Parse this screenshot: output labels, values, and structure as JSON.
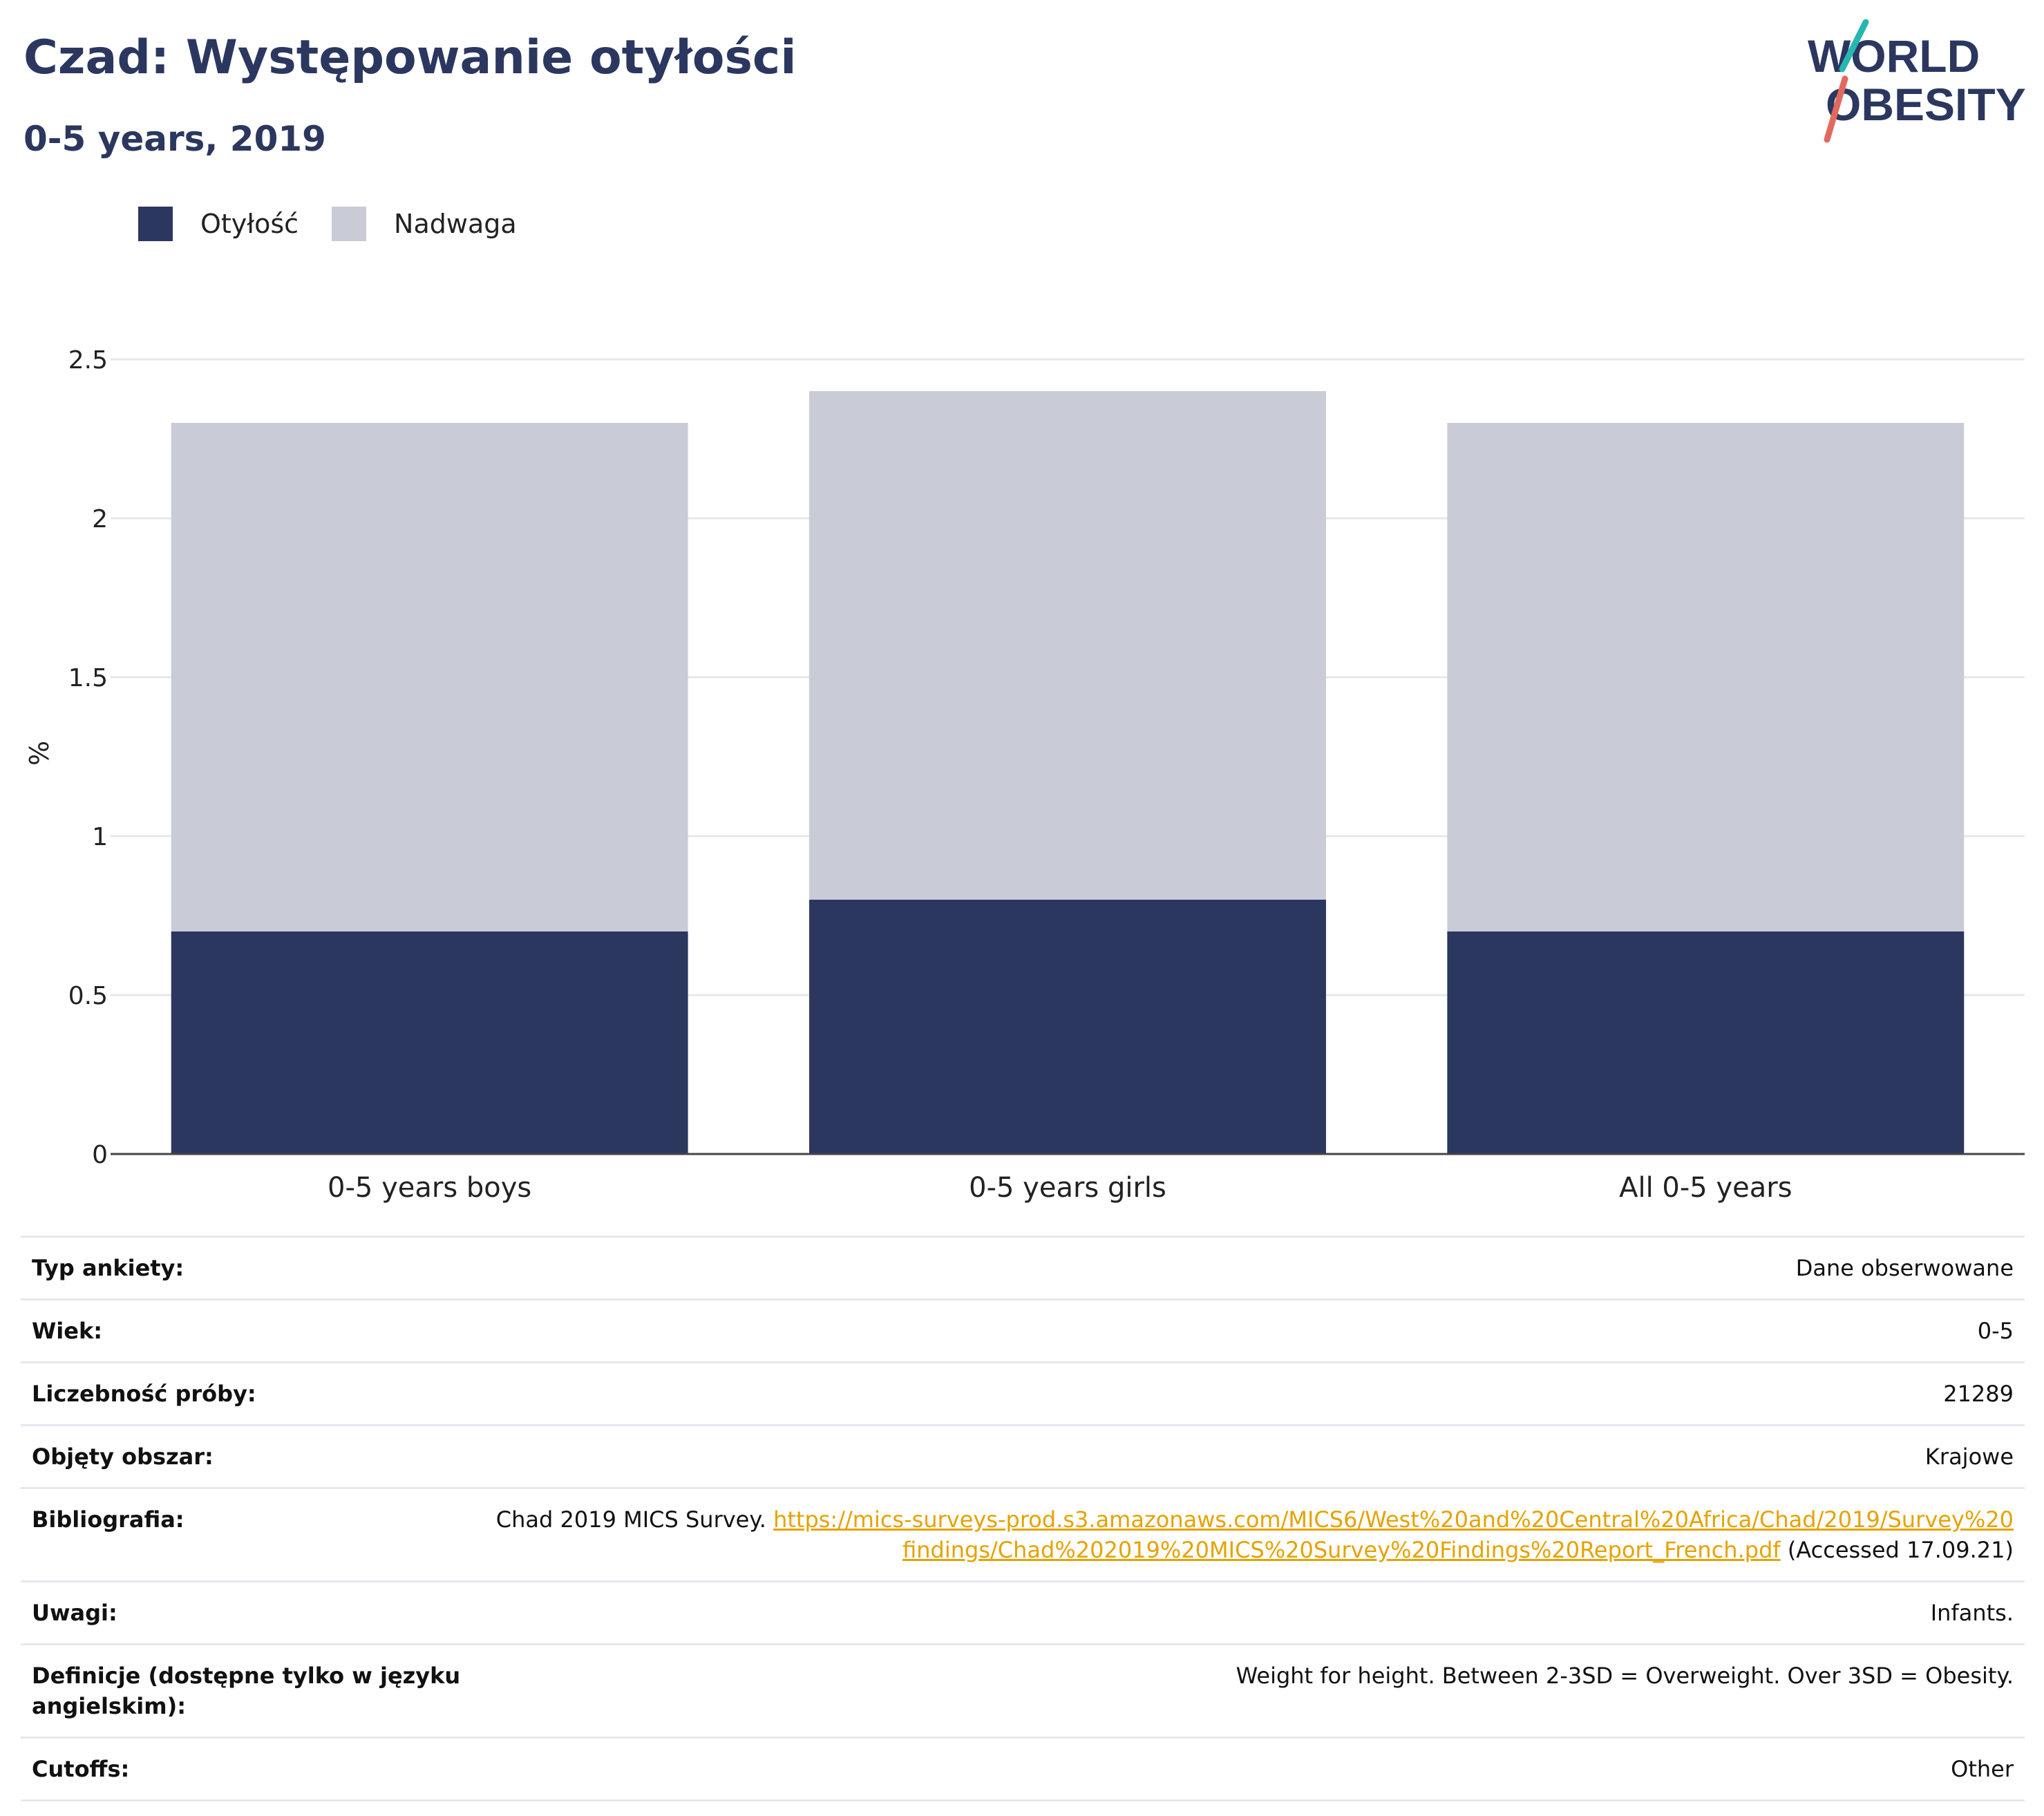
{
  "header": {
    "title": "Czad: Występowanie otyłości",
    "subtitle": "0-5 years, 2019"
  },
  "logo": {
    "line1": "WORLD",
    "line2": "OBESITY"
  },
  "legend": {
    "items": [
      {
        "label": "Otyłość",
        "color": "#2b375f"
      },
      {
        "label": "Nadwaga",
        "color": "#c9cbd7"
      }
    ]
  },
  "chart_data": {
    "type": "bar",
    "stacked": true,
    "categories": [
      "0-5 years boys",
      "0-5 years girls",
      "All 0-5 years"
    ],
    "series": [
      {
        "name": "Otyłość",
        "values": [
          0.7,
          0.8,
          0.7
        ],
        "color": "#2b375f"
      },
      {
        "name": "Nadwaga",
        "values": [
          1.6,
          1.6,
          1.6
        ],
        "color": "#c9cbd7"
      }
    ],
    "title": "Czad: Występowanie otyłości",
    "subtitle": "0-5 years, 2019",
    "xlabel": "",
    "ylabel": "%",
    "ylim": [
      0,
      2.5
    ],
    "yticks": [
      0,
      0.5,
      1,
      1.5,
      2,
      2.5
    ],
    "ytick_labels": [
      "0",
      "0.5",
      "1",
      "1.5",
      "2",
      "2.5"
    ],
    "grid": true,
    "legend_position": "top-left"
  },
  "meta": {
    "survey_type": {
      "label": "Typ ankiety:",
      "value": "Dane obserwowane"
    },
    "age": {
      "label": "Wiek:",
      "value": "0-5"
    },
    "sample_size": {
      "label": "Liczebność próby:",
      "value": "21289"
    },
    "area": {
      "label": "Objęty obszar:",
      "value": "Krajowe"
    },
    "reference": {
      "label": "Bibliografia:",
      "prefix": "Chad 2019 MICS Survey. ",
      "link": "https://mics-surveys-prod.s3.amazonaws.com/MICS6/West%20and%20Central%20Africa/Chad/2019/Survey%20findings/Chad%202019%20MICS%20Survey%20Findings%20Report_French.pdf",
      "suffix": " (Accessed 17.09.21)"
    },
    "notes": {
      "label": "Uwagi:",
      "value": "Infants."
    },
    "definitions": {
      "label": "Definicje (dostępne tylko w języku angielskim):",
      "value": "Weight for height. Between 2-3SD = Overweight. Over 3SD = Obesity."
    },
    "cutoffs": {
      "label": "Cutoffs:",
      "value": "Other"
    }
  }
}
